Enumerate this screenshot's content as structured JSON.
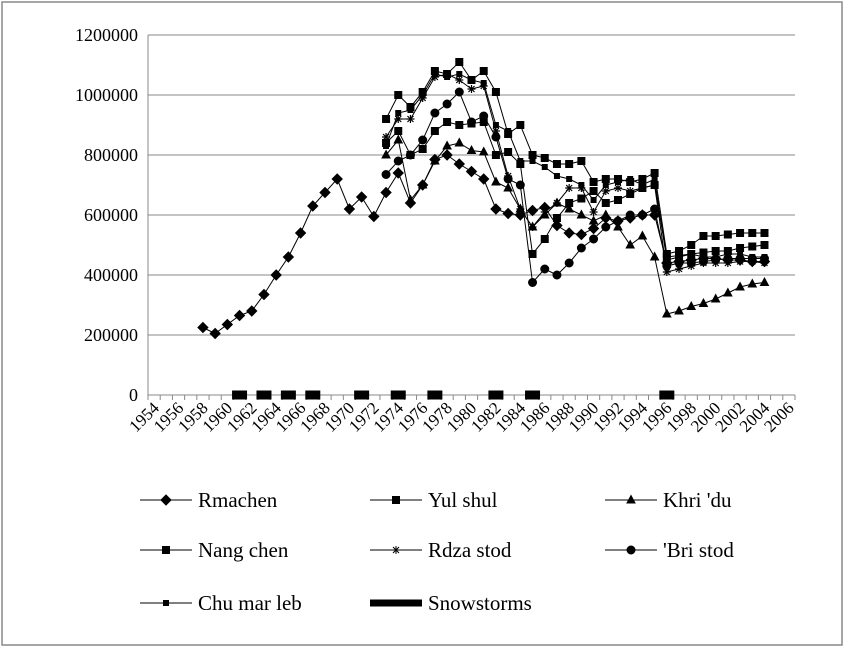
{
  "chart_data": {
    "type": "line",
    "categories": [
      1954,
      null,
      1956,
      null,
      1958,
      null,
      1960,
      null,
      1962,
      null,
      1964,
      null,
      1966,
      null,
      1968,
      null,
      1970,
      null,
      1972,
      null,
      1974,
      null,
      1976,
      null,
      1978,
      null,
      1980,
      null,
      1982,
      null,
      1984,
      null,
      1986,
      null,
      1988,
      null,
      1990,
      null,
      1992,
      null,
      1994,
      null,
      1996,
      null,
      1998,
      null,
      2000,
      null,
      2002,
      null,
      2004,
      null,
      2006
    ],
    "ylim": [
      0,
      1200000
    ],
    "yticks": [
      0,
      200000,
      400000,
      600000,
      800000,
      1000000,
      1200000
    ],
    "grid": true,
    "series": [
      {
        "name": "Rmachen",
        "color": "#000000",
        "marker": "diamond",
        "values": [
          null,
          null,
          null,
          null,
          225000,
          205000,
          235000,
          265000,
          280000,
          335000,
          400000,
          460000,
          540000,
          630000,
          675000,
          720000,
          620000,
          660000,
          595000,
          675000,
          740000,
          640000,
          700000,
          785000,
          800000,
          770000,
          745000,
          720000,
          620000,
          605000,
          600000,
          615000,
          625000,
          565000,
          540000,
          535000,
          555000,
          590000,
          580000,
          590000,
          600000,
          600000,
          440000,
          445000,
          450000,
          455000,
          455000,
          450000,
          450000,
          445000,
          445000,
          null,
          null
        ]
      },
      {
        "name": "Yul shul",
        "color": "#000000",
        "marker": "square",
        "values": [
          null,
          null,
          null,
          null,
          null,
          null,
          null,
          null,
          null,
          null,
          null,
          null,
          null,
          null,
          null,
          null,
          null,
          null,
          null,
          840000,
          880000,
          800000,
          820000,
          880000,
          910000,
          900000,
          905000,
          910000,
          800000,
          810000,
          770000,
          470000,
          520000,
          590000,
          640000,
          655000,
          680000,
          640000,
          650000,
          670000,
          690000,
          700000,
          460000,
          465000,
          470000,
          475000,
          480000,
          480000,
          490000,
          495000,
          500000,
          null,
          null
        ]
      },
      {
        "name": "Khri 'du",
        "color": "#000000",
        "marker": "triangle",
        "values": [
          null,
          null,
          null,
          null,
          null,
          null,
          null,
          null,
          null,
          null,
          null,
          null,
          null,
          null,
          null,
          null,
          null,
          null,
          null,
          800000,
          850000,
          650000,
          700000,
          780000,
          830000,
          840000,
          815000,
          810000,
          710000,
          690000,
          620000,
          560000,
          600000,
          640000,
          620000,
          600000,
          580000,
          600000,
          560000,
          500000,
          530000,
          460000,
          270000,
          280000,
          295000,
          305000,
          320000,
          340000,
          360000,
          370000,
          375000,
          null,
          null
        ]
      },
      {
        "name": "Nang chen",
        "color": "#000000",
        "marker": "square",
        "values": [
          null,
          null,
          null,
          null,
          null,
          null,
          null,
          null,
          null,
          null,
          null,
          null,
          null,
          null,
          null,
          null,
          null,
          null,
          null,
          920000,
          1000000,
          960000,
          1010000,
          1080000,
          1070000,
          1110000,
          1050000,
          1080000,
          1010000,
          870000,
          900000,
          800000,
          790000,
          770000,
          770000,
          780000,
          710000,
          720000,
          720000,
          710000,
          720000,
          740000,
          470000,
          480000,
          500000,
          530000,
          530000,
          535000,
          540000,
          540000,
          540000,
          null,
          null
        ]
      },
      {
        "name": "Rdza stod",
        "color": "#000000",
        "marker": "star",
        "values": [
          null,
          null,
          null,
          null,
          null,
          null,
          null,
          null,
          null,
          null,
          null,
          null,
          null,
          null,
          null,
          null,
          null,
          null,
          null,
          860000,
          920000,
          920000,
          990000,
          1060000,
          1070000,
          1050000,
          1020000,
          1030000,
          880000,
          730000,
          620000,
          560000,
          610000,
          640000,
          690000,
          690000,
          610000,
          680000,
          690000,
          680000,
          690000,
          700000,
          410000,
          420000,
          430000,
          440000,
          440000,
          440000,
          445000,
          445000,
          440000,
          null,
          null
        ]
      },
      {
        "name": "'Bri stod",
        "color": "#000000",
        "marker": "circle",
        "values": [
          null,
          null,
          null,
          null,
          null,
          null,
          null,
          null,
          null,
          null,
          null,
          null,
          null,
          null,
          null,
          null,
          null,
          null,
          null,
          735000,
          780000,
          800000,
          850000,
          940000,
          970000,
          1010000,
          910000,
          930000,
          860000,
          720000,
          700000,
          375000,
          420000,
          400000,
          440000,
          490000,
          520000,
          560000,
          580000,
          600000,
          600000,
          620000,
          430000,
          440000,
          440000,
          445000,
          450000,
          455000,
          455000,
          455000,
          455000,
          null,
          null
        ]
      },
      {
        "name": "Chu mar leb",
        "color": "#000000",
        "marker": "small-square",
        "values": [
          null,
          null,
          null,
          null,
          null,
          null,
          null,
          null,
          null,
          null,
          null,
          null,
          null,
          null,
          null,
          null,
          null,
          null,
          null,
          830000,
          940000,
          950000,
          1000000,
          1070000,
          1060000,
          1070000,
          1050000,
          1040000,
          900000,
          880000,
          780000,
          780000,
          760000,
          730000,
          720000,
          700000,
          650000,
          700000,
          710000,
          720000,
          700000,
          720000,
          450000,
          460000,
          470000,
          460000,
          460000,
          470000,
          470000,
          460000,
          460000,
          null,
          null
        ]
      },
      {
        "name": "Snowstorms",
        "color": "#000000",
        "marker": "dash",
        "values": [
          null,
          null,
          null,
          null,
          null,
          null,
          null,
          0,
          null,
          0,
          null,
          0,
          null,
          0,
          null,
          null,
          null,
          0,
          null,
          null,
          0,
          null,
          null,
          0,
          null,
          null,
          null,
          null,
          0,
          null,
          null,
          0,
          null,
          null,
          null,
          null,
          null,
          null,
          null,
          null,
          null,
          null,
          0,
          null,
          null,
          null,
          null,
          null,
          null,
          null,
          null,
          null,
          null
        ]
      }
    ]
  }
}
